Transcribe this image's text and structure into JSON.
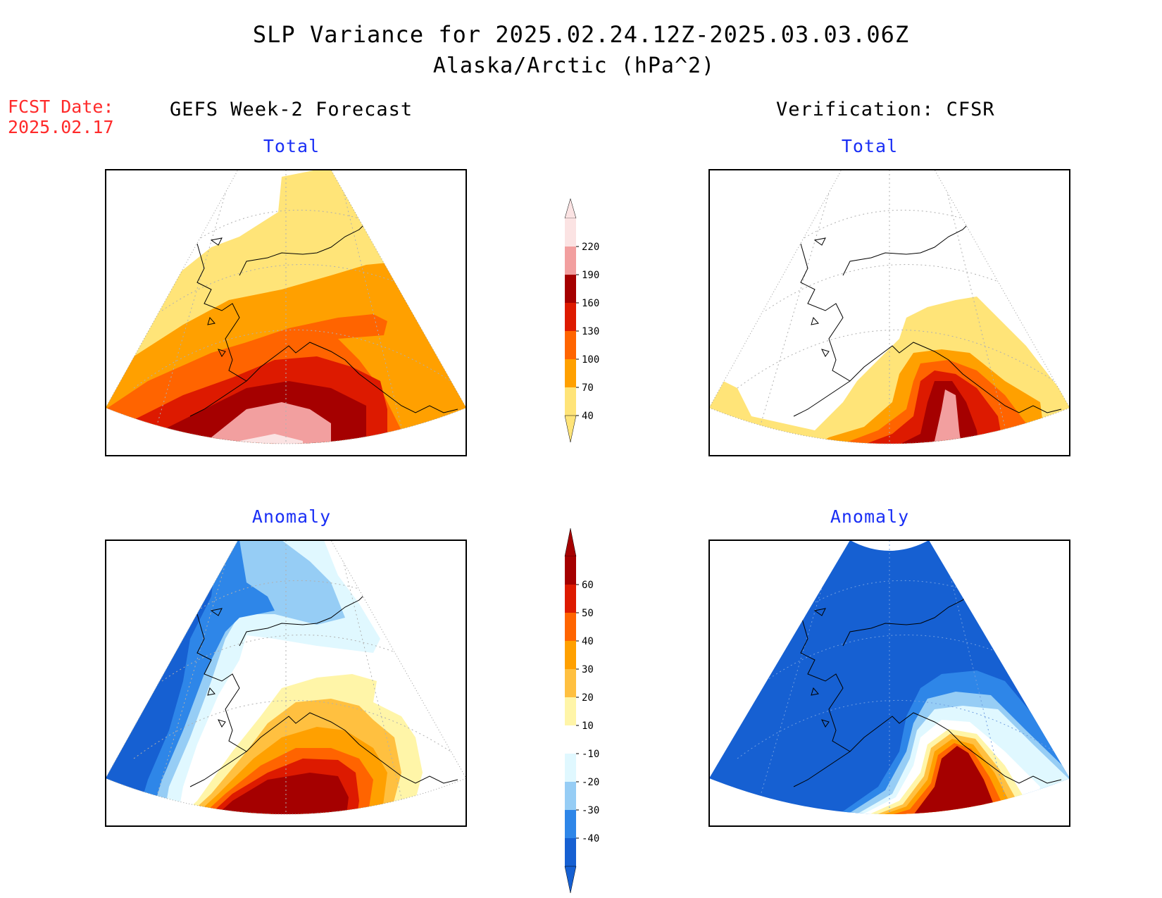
{
  "title": "SLP Variance for 2025.02.24.12Z-2025.03.03.06Z",
  "subtitle": "Alaska/Arctic (hPa^2)",
  "fcst_date": {
    "label": "FCST Date:",
    "value": "2025.02.17"
  },
  "columns": {
    "left": "GEFS Week-2 Forecast",
    "right": "Verification: CFSR"
  },
  "panel_titles": {
    "top_left": "Total",
    "top_right": "Total",
    "bottom_left": "Anomaly",
    "bottom_right": "Anomaly"
  },
  "colors": {
    "panel_title": "#1a2ff5",
    "fcst_date": "#ff2a2a"
  },
  "colorbar_total": {
    "labels": [
      "220",
      "190",
      "160",
      "130",
      "100",
      "70",
      "40"
    ],
    "colors": [
      "#fbe3e3",
      "#f29f9f",
      "#a50000",
      "#dd1a00",
      "#ff6400",
      "#ffa000",
      "#ffe478"
    ]
  },
  "colorbar_anomaly": {
    "labels": [
      "60",
      "50",
      "40",
      "30",
      "20",
      "10",
      "-10",
      "-20",
      "-30",
      "-40"
    ],
    "colors": [
      "#a50000",
      "#dd1a00",
      "#ff6400",
      "#ffa000",
      "#ffc040",
      "#fff5a8",
      "#ffffff",
      "#e0f8ff",
      "#96cdf5",
      "#2e86e8",
      "#1660d2"
    ]
  },
  "map_colors": {
    "total": {
      "c40": "#ffe478",
      "c70": "#ffa000",
      "c100": "#ff6400",
      "c130": "#dd1a00",
      "c160": "#a50000",
      "c190": "#f29f9f",
      "c220": "#fbe3e3"
    },
    "anomaly": {
      "n40": "#1660d2",
      "n30": "#2e86e8",
      "n20": "#96cdf5",
      "n10": "#e0f8ff",
      "z": "#ffffff",
      "p10": "#fff5a8",
      "p20": "#ffc040",
      "p30": "#ffa000",
      "p40": "#ff6400",
      "p50": "#dd1a00",
      "p60": "#a50000"
    }
  }
}
